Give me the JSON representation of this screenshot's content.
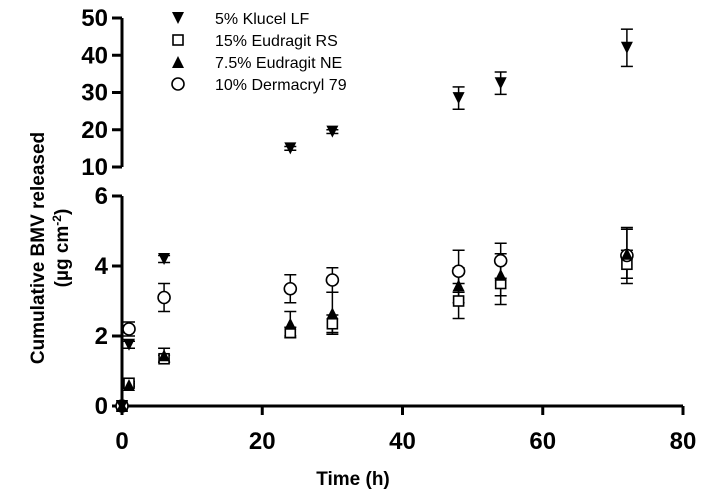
{
  "chart_data": {
    "type": "scatter",
    "xlabel": "Time (h)",
    "ylabel_line1": "Cumulative BMV released",
    "ylabel_line2_prefix": "(µg cm",
    "ylabel_line2_sup": "-2",
    "ylabel_line2_suffix": ")",
    "xlim": [
      0,
      80
    ],
    "x_ticks": [
      "0",
      "20",
      "40",
      "60",
      "80"
    ],
    "y_axis_broken": true,
    "y_lower_range": [
      0,
      6
    ],
    "y_lower_ticks": [
      "0",
      "2",
      "4",
      "6"
    ],
    "y_upper_range": [
      10,
      50
    ],
    "y_upper_ticks": [
      "10",
      "20",
      "30",
      "40",
      "50"
    ],
    "grid": false,
    "legend_position": "top-left",
    "series": [
      {
        "name": "5% Klucel LF",
        "marker": "triangle-down",
        "points": [
          {
            "x": 0,
            "y": 0,
            "err": 0
          },
          {
            "x": 1,
            "y": 1.75,
            "err": 0.1
          },
          {
            "x": 6,
            "y": 4.2,
            "err": 0.1
          },
          {
            "x": 24,
            "y": 15,
            "err": 0.5
          },
          {
            "x": 30,
            "y": 19.5,
            "err": 0.5
          },
          {
            "x": 48,
            "y": 28.5,
            "err": 3
          },
          {
            "x": 54,
            "y": 32.5,
            "err": 3
          },
          {
            "x": 72,
            "y": 42,
            "err": 5
          }
        ]
      },
      {
        "name": "15% Eudragit RS",
        "marker": "square-open",
        "points": [
          {
            "x": 0,
            "y": 0,
            "err": 0
          },
          {
            "x": 1,
            "y": 0.65,
            "err": 0.05
          },
          {
            "x": 6,
            "y": 1.35,
            "err": 0.1
          },
          {
            "x": 24,
            "y": 2.1,
            "err": 0.15
          },
          {
            "x": 30,
            "y": 2.35,
            "err": 0.25
          },
          {
            "x": 48,
            "y": 3.0,
            "err": 0.5
          },
          {
            "x": 54,
            "y": 3.5,
            "err": 0.6
          },
          {
            "x": 72,
            "y": 4.05,
            "err": 0.4
          }
        ]
      },
      {
        "name": "7.5% Eudragit NE",
        "marker": "triangle-up",
        "points": [
          {
            "x": 0,
            "y": 0,
            "err": 0
          },
          {
            "x": 1,
            "y": 0.6,
            "err": 0.05
          },
          {
            "x": 6,
            "y": 1.45,
            "err": 0.2
          },
          {
            "x": 24,
            "y": 2.35,
            "err": 0.35
          },
          {
            "x": 30,
            "y": 2.65,
            "err": 0.6
          },
          {
            "x": 48,
            "y": 3.45,
            "err": 0.5
          },
          {
            "x": 54,
            "y": 3.75,
            "err": 0.6
          },
          {
            "x": 72,
            "y": 4.35,
            "err": 0.7
          }
        ]
      },
      {
        "name": "10% Dermacryl 79",
        "marker": "circle-open",
        "points": [
          {
            "x": 0,
            "y": 0,
            "err": 0
          },
          {
            "x": 1,
            "y": 2.2,
            "err": 0.2
          },
          {
            "x": 6,
            "y": 3.1,
            "err": 0.4
          },
          {
            "x": 24,
            "y": 3.35,
            "err": 0.4
          },
          {
            "x": 30,
            "y": 3.6,
            "err": 0.35
          },
          {
            "x": 48,
            "y": 3.85,
            "err": 0.6
          },
          {
            "x": 54,
            "y": 4.15,
            "err": 0.5
          },
          {
            "x": 72,
            "y": 4.3,
            "err": 0.8
          }
        ]
      }
    ]
  }
}
